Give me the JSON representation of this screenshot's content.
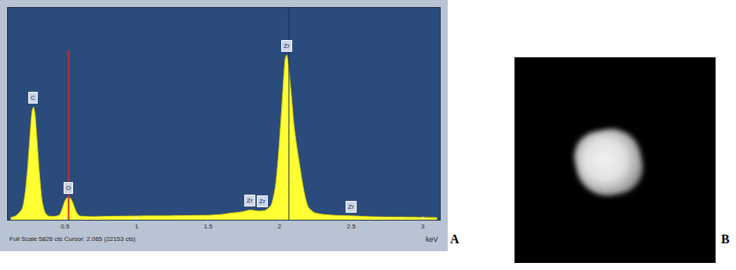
{
  "chart_data": {
    "type": "area",
    "x": [
      0.12,
      0.16,
      0.2,
      0.22,
      0.24,
      0.26,
      0.27,
      0.28,
      0.29,
      0.3,
      0.32,
      0.34,
      0.36,
      0.38,
      0.42,
      0.46,
      0.48,
      0.5,
      0.52,
      0.54,
      0.56,
      0.58,
      0.6,
      0.65,
      0.7,
      0.8,
      0.9,
      1.0,
      1.1,
      1.2,
      1.3,
      1.4,
      1.5,
      1.55,
      1.6,
      1.65,
      1.7,
      1.74,
      1.78,
      1.8,
      1.83,
      1.86,
      1.9,
      1.94,
      1.97,
      1.99,
      2.01,
      2.03,
      2.04,
      2.05,
      2.06,
      2.08,
      2.1,
      2.12,
      2.14,
      2.16,
      2.18,
      2.2,
      2.24,
      2.3,
      2.4,
      2.5,
      2.55,
      2.6,
      2.7,
      2.8,
      2.9,
      3.0,
      3.1
    ],
    "values": [
      60,
      120,
      300,
      700,
      1500,
      2600,
      3000,
      3100,
      2900,
      2400,
      1300,
      500,
      200,
      110,
      90,
      130,
      300,
      530,
      620,
      580,
      400,
      200,
      110,
      90,
      85,
      95,
      100,
      105,
      110,
      110,
      115,
      120,
      125,
      135,
      150,
      180,
      200,
      220,
      260,
      270,
      250,
      240,
      260,
      400,
      900,
      1700,
      2800,
      4000,
      4450,
      4530,
      4300,
      3500,
      2600,
      2000,
      1500,
      1000,
      600,
      350,
      200,
      150,
      120,
      110,
      100,
      90,
      80,
      75,
      70,
      65,
      60
    ],
    "color": "#ffff33",
    "xlim": [
      0.1,
      3.12
    ],
    "xticks": [
      0.5,
      1,
      1.5,
      2,
      2.5,
      3
    ],
    "ylim": [
      0,
      5826
    ],
    "yticks": [],
    "tick_labels": "x",
    "grid": false,
    "xlabel": "keV",
    "footer": "Full Scale 5826 cts Cursor: 2.065 (22153 cts)",
    "peak_labels": [
      {
        "text": "C",
        "x": 0.277
      },
      {
        "text": "O",
        "x": 0.525
      },
      {
        "text": "Zr",
        "x": 1.79
      },
      {
        "text": "Zr",
        "x": 1.88
      },
      {
        "text": "Zr",
        "x": 2.05
      },
      {
        "text": "Zr",
        "x": 2.5
      }
    ],
    "marker_line": 0.525,
    "cursor": 2.065
  },
  "panels": [
    {
      "label": "A"
    },
    {
      "label": "B"
    }
  ]
}
